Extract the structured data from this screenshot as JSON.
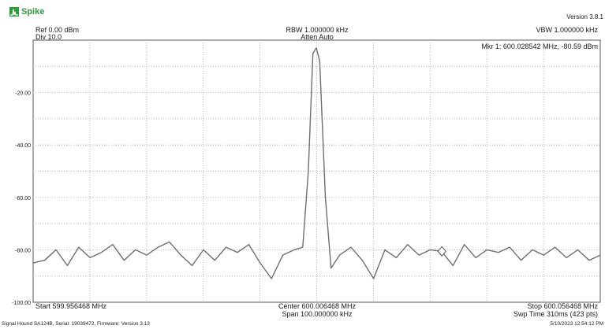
{
  "app": {
    "name": "Spike",
    "version": "Version 3.8.1"
  },
  "header": {
    "ref": "Ref 0.00 dBm",
    "div": "Div 10.0",
    "rbw": "RBW 1.000000 kHz",
    "atten": "Atten Auto",
    "vbw": "VBW 1.000000 kHz"
  },
  "marker": {
    "label": "Mkr 1: 600.028542 MHz, -80.59 dBm",
    "freq_mhz": 600.028542,
    "level_dbm": -80.59
  },
  "footer": {
    "start": "Start 599.956468 MHz",
    "center": "Center 600.006468 MHz",
    "span": "Span 100.000000 kHz",
    "stop": "Stop 600.056468 MHz",
    "sweep": "Swp Time 310ms (423 pts)",
    "device": "Signal Hound SA124B, Serial: 19039472, Firmware: Version 3.13",
    "timestamp": "5/10/2023 12:54:12 PM"
  },
  "colors": {
    "trace": "#6e6e6e",
    "grid": "#b8b8b8",
    "logo": "#2e9c3a"
  },
  "chart_data": {
    "type": "line",
    "title": "",
    "xlabel": "",
    "ylabel": "",
    "xlim": [
      599.956468,
      600.056468
    ],
    "ylim": [
      -100,
      0
    ],
    "grid": true,
    "y_ticks": [
      "-20.00",
      "-40.00",
      "-60.00",
      "-80.00",
      "-100.00"
    ],
    "y_tick_values": [
      -20,
      -40,
      -60,
      -80,
      -100
    ],
    "series": [
      {
        "x": [
          599.956468,
          599.9585,
          599.9605,
          599.9625,
          599.9645,
          599.9665,
          599.9685,
          599.9705,
          599.9725,
          599.9745,
          599.9765,
          599.9785,
          599.9805,
          599.9825,
          599.9845,
          599.9865,
          599.9885,
          599.9905,
          599.9925,
          599.9945,
          599.9965,
          599.9985,
          600.0005,
          600.0025,
          600.004,
          600.005,
          600.0058,
          600.0064,
          600.007,
          600.008,
          600.009,
          600.0105,
          600.0125,
          600.0145,
          600.0165,
          600.0185,
          600.0205,
          600.0225,
          600.0245,
          600.0265,
          600.0285,
          600.0305,
          600.0325,
          600.0345,
          600.0365,
          600.0385,
          600.0405,
          600.0425,
          600.0445,
          600.0465,
          600.0485,
          600.0505,
          600.0525,
          600.0545,
          600.056468
        ],
        "y": [
          -85,
          -84,
          -80,
          -86,
          -79,
          -83,
          -81,
          -78,
          -84,
          -80,
          -82,
          -79,
          -77,
          -82,
          -86,
          -80,
          -84,
          -79,
          -81,
          -78,
          -85,
          -91,
          -82,
          -80,
          -79,
          -50,
          -5,
          -3,
          -8,
          -60,
          -87,
          -82,
          -79,
          -84,
          -91,
          -80,
          -83,
          -78,
          -82,
          -80,
          -80.6,
          -86,
          -78,
          -83,
          -80,
          -81,
          -79,
          -84,
          -80,
          -82,
          -79,
          -83,
          -80,
          -84,
          -82
        ]
      }
    ]
  }
}
